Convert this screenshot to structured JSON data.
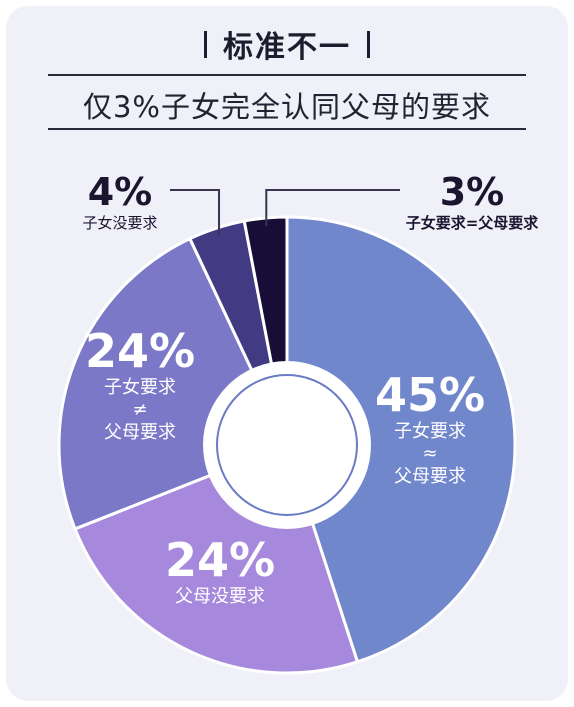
{
  "header": {
    "title": "标准不一",
    "subtitle": "仅3%子女完全认同父母的要求"
  },
  "chart_data": {
    "type": "pie",
    "title": "仅3%子女完全认同父母的要求",
    "slices": [
      {
        "value": 45,
        "percent_label": "45%",
        "label_lines": [
          "子女要求",
          "≈",
          "父母要求"
        ],
        "color": "#7187cc"
      },
      {
        "value": 24,
        "percent_label": "24%",
        "label_lines": [
          "父母没要求"
        ],
        "color": "#a689dc"
      },
      {
        "value": 24,
        "percent_label": "24%",
        "label_lines": [
          "子女要求",
          "≠",
          "父母要求"
        ],
        "color": "#7a78c7"
      },
      {
        "value": 4,
        "percent_label": "4%",
        "label_lines": [
          "子女没要求"
        ],
        "color": "#423a83"
      },
      {
        "value": 3,
        "percent_label": "3%",
        "label_lines": [
          "子女要求=父母要求"
        ],
        "color": "#170d36"
      }
    ]
  }
}
